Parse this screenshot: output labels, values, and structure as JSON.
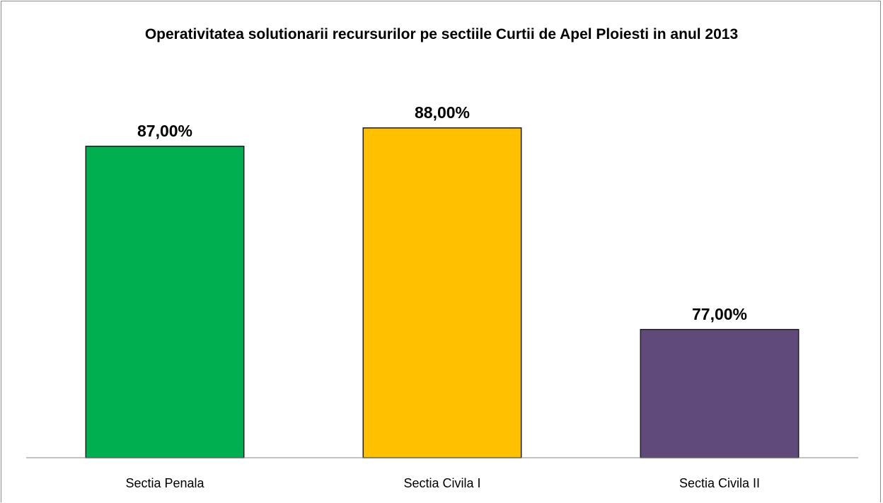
{
  "chart_data": {
    "type": "bar",
    "title": "Operativitatea solutionarii recursurilor pe sectiile Curtii de Apel Ploiesti in anul 2013",
    "categories": [
      "Sectia Penala",
      "Sectia Civila I",
      "Sectia Civila II"
    ],
    "values": [
      87,
      88,
      77
    ],
    "value_labels": [
      "87,00%",
      "88,00%",
      "77,00%"
    ],
    "colors": [
      "#00b050",
      "#ffc000",
      "#604a7b"
    ],
    "ylim": [
      70,
      90
    ]
  }
}
